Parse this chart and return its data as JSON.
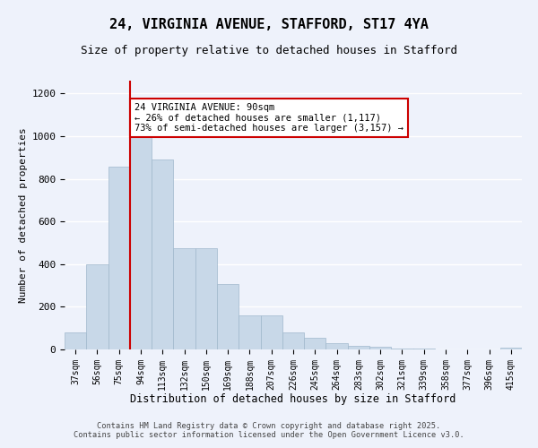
{
  "title_line1": "24, VIRGINIA AVENUE, STAFFORD, ST17 4YA",
  "title_line2": "Size of property relative to detached houses in Stafford",
  "xlabel": "Distribution of detached houses by size in Stafford",
  "ylabel": "Number of detached properties",
  "categories": [
    "37sqm",
    "56sqm",
    "75sqm",
    "94sqm",
    "113sqm",
    "132sqm",
    "150sqm",
    "169sqm",
    "188sqm",
    "207sqm",
    "226sqm",
    "245sqm",
    "264sqm",
    "283sqm",
    "302sqm",
    "321sqm",
    "339sqm",
    "358sqm",
    "377sqm",
    "396sqm",
    "415sqm"
  ],
  "values": [
    80,
    400,
    855,
    1005,
    890,
    475,
    475,
    305,
    160,
    160,
    80,
    55,
    30,
    18,
    14,
    5,
    3,
    2,
    1,
    1,
    8
  ],
  "bar_color": "#c8d8e8",
  "bar_edge_color": "#a0b8cc",
  "annotation_text": "24 VIRGINIA AVENUE: 90sqm\n← 26% of detached houses are smaller (1,117)\n73% of semi-detached houses are larger (3,157) →",
  "annotation_box_color": "#ffffff",
  "annotation_box_edge_color": "#cc0000",
  "vline_color": "#cc0000",
  "vline_x_index": 2.5,
  "ylim": [
    0,
    1260
  ],
  "yticks": [
    0,
    200,
    400,
    600,
    800,
    1000,
    1200
  ],
  "bg_color": "#eef2fb",
  "grid_color": "#ffffff",
  "footer_line1": "Contains HM Land Registry data © Crown copyright and database right 2025.",
  "footer_line2": "Contains public sector information licensed under the Open Government Licence v3.0."
}
